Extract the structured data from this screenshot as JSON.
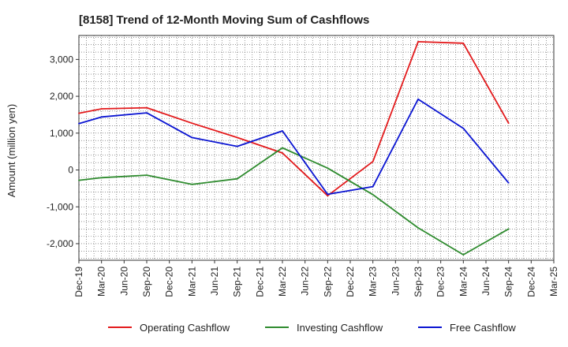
{
  "chart_data": {
    "type": "line",
    "title": "[8158]  Trend of 12-Month Moving Sum of Cashflows",
    "ylabel": "Amount (million yen)",
    "xlabel": "",
    "categories": [
      "Dec-19",
      "Mar-20",
      "Jun-20",
      "Sep-20",
      "Dec-20",
      "Mar-21",
      "Jun-21",
      "Sep-21",
      "Dec-21",
      "Mar-22",
      "Jun-22",
      "Sep-22",
      "Dec-22",
      "Mar-23",
      "Jun-23",
      "Sep-23",
      "Dec-23",
      "Mar-24",
      "Jun-24",
      "Sep-24",
      "Dec-24",
      "Mar-25"
    ],
    "ylim": [
      -2450,
      3650
    ],
    "yticks": [
      -2000,
      -1000,
      0,
      1000,
      2000,
      3000
    ],
    "ytick_labels": [
      "-2,000",
      "-1,000",
      "0",
      "1,000",
      "2,000",
      "3,000"
    ],
    "grid": true,
    "legend_position": "bottom",
    "series": [
      {
        "name": "Operating Cashflow",
        "color": "#e31a1c",
        "values": [
          1540,
          1660,
          null,
          1690,
          null,
          1270,
          null,
          880,
          null,
          460,
          null,
          -700,
          null,
          230,
          null,
          3480,
          null,
          3440,
          null,
          1270,
          null,
          null
        ]
      },
      {
        "name": "Investing Cashflow",
        "color": "#2e8b2e",
        "values": [
          -280,
          -210,
          null,
          -140,
          null,
          -390,
          null,
          -240,
          null,
          600,
          null,
          50,
          null,
          -670,
          null,
          -1570,
          null,
          -2300,
          null,
          -1600,
          null,
          null
        ]
      },
      {
        "name": "Free Cashflow",
        "color": "#0a14d2",
        "values": [
          1260,
          1440,
          null,
          1550,
          null,
          880,
          null,
          640,
          null,
          1060,
          null,
          -660,
          null,
          -450,
          null,
          1920,
          null,
          1130,
          null,
          -350,
          null,
          null
        ]
      }
    ]
  }
}
